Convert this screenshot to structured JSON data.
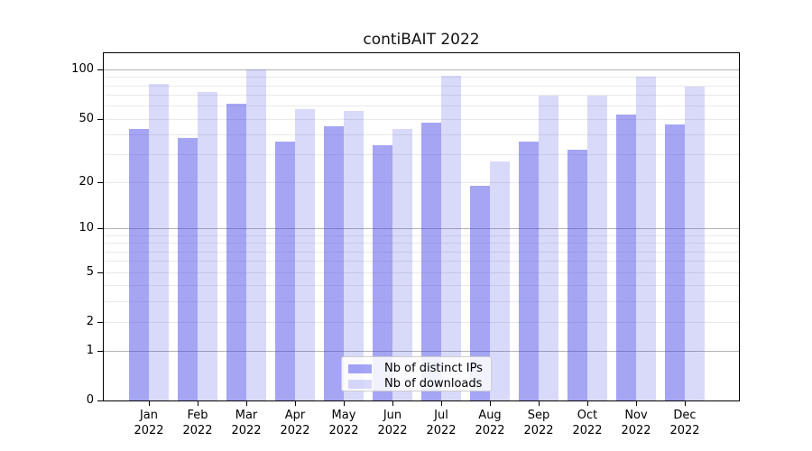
{
  "title": "contiBAIT 2022",
  "colors": {
    "dark_bar": "rgba(64,64,232,0.47)",
    "dark_bar_hex_on_white": "#a5a5ef",
    "light_bar": "rgba(64,64,232,0.20)",
    "light_bar_hex_on_white": "#d8d8fa",
    "major_grid": "#b3b3b3",
    "minor_grid": "#e9e9e9",
    "axis": "#000000",
    "text": "#000000"
  },
  "chart_data": {
    "type": "bar",
    "title": "contiBAIT 2022",
    "categories": [
      "Jan",
      "Feb",
      "Mar",
      "Apr",
      "May",
      "Jun",
      "Jul",
      "Aug",
      "Sep",
      "Oct",
      "Nov",
      "Dec"
    ],
    "year": "2022",
    "series": [
      {
        "name": "Nb of distinct IPs",
        "values": [
          43,
          38,
          62,
          36,
          45,
          34,
          47,
          19,
          36,
          32,
          53,
          46
        ]
      },
      {
        "name": "Nb of downloads",
        "values": [
          82,
          73,
          100,
          57,
          56,
          43,
          92,
          27,
          69,
          69,
          91,
          79
        ]
      }
    ],
    "xlabel": "",
    "ylabel": "",
    "yscale": "log1p",
    "ylim": [
      0,
      126
    ],
    "yticks": [
      0,
      1,
      2,
      5,
      10,
      20,
      50,
      100
    ],
    "yticklabels": [
      "0",
      "1",
      "2",
      "5",
      "10",
      "20",
      "50",
      "100"
    ],
    "major_gridlines": [
      1,
      10,
      100
    ],
    "minor_gridlines": [
      2,
      3,
      4,
      5,
      6,
      7,
      8,
      9,
      20,
      30,
      40,
      50,
      60,
      70,
      80,
      90
    ],
    "grid": true,
    "legend_position": "lower center"
  }
}
